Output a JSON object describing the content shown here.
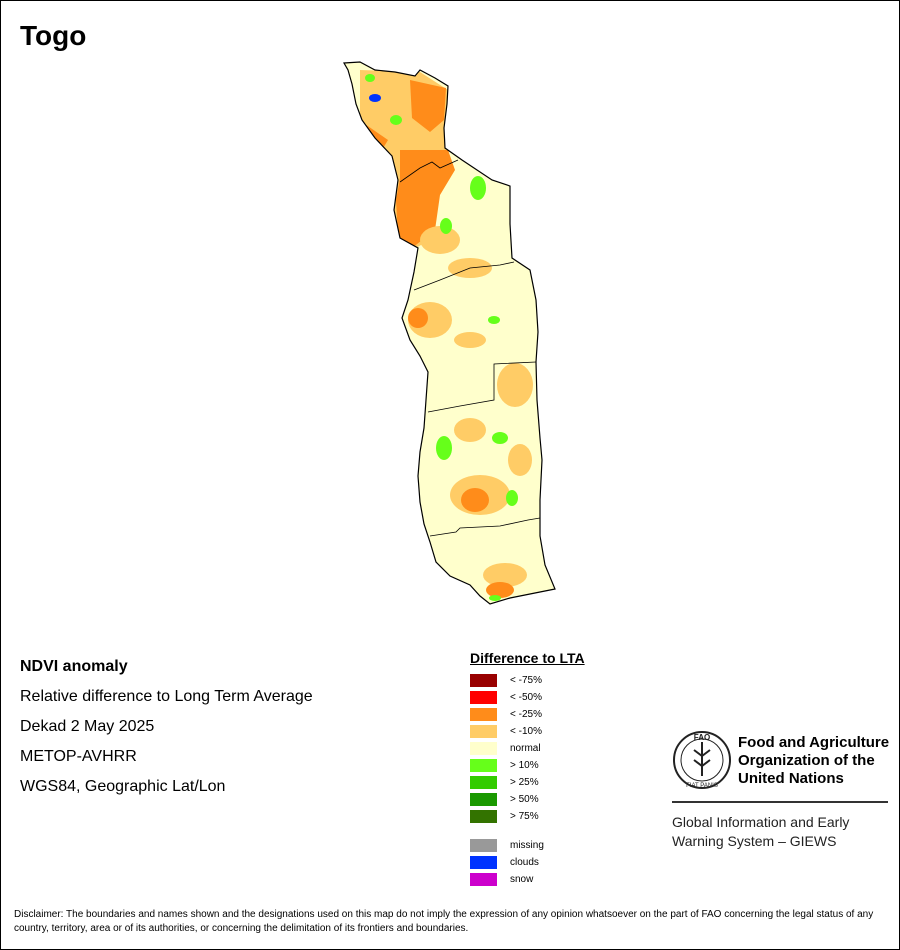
{
  "title": "Togo",
  "info": {
    "line1": "NDVI anomaly",
    "line2": "Relative difference to Long Term Average",
    "line3": "Dekad 2 May 2025",
    "line4": "METOP-AVHRR",
    "line5": "WGS84, Geographic Lat/Lon"
  },
  "legend": {
    "title": "Difference to LTA",
    "items": [
      {
        "label": "< -75%",
        "color": "#990000"
      },
      {
        "label": "< -50%",
        "color": "#ff0000"
      },
      {
        "label": "< -25%",
        "color": "#ff8c1a"
      },
      {
        "label": "< -10%",
        "color": "#ffcc66"
      },
      {
        "label": "normal",
        "color": "#ffffcc"
      },
      {
        "label": "> 10%",
        "color": "#66ff1a"
      },
      {
        "label": "> 25%",
        "color": "#33cc00"
      },
      {
        "label": "> 50%",
        "color": "#1a9900"
      },
      {
        "label": "> 75%",
        "color": "#337300"
      }
    ],
    "extra": [
      {
        "label": "missing",
        "color": "#999999"
      },
      {
        "label": "clouds",
        "color": "#0033ff"
      },
      {
        "label": "snow",
        "color": "#cc00cc"
      }
    ]
  },
  "logo": {
    "org_line1": "Food and Agriculture",
    "org_line2": "Organization of the",
    "org_line3": "United Nations",
    "giews_line1": "Global Information and Early",
    "giews_line2": "Warning System – GIEWS",
    "emblem_text": "FAO",
    "motto": "FIAT PANIS"
  },
  "disclaimer": "Disclaimer: The boundaries and names shown and the designations used on this map do not imply the expression of any opinion whatsoever on the part of FAO concerning the legal status of any country, territory, area or of its authorities, or concerning the delimitation of its frontiers and boundaries."
}
